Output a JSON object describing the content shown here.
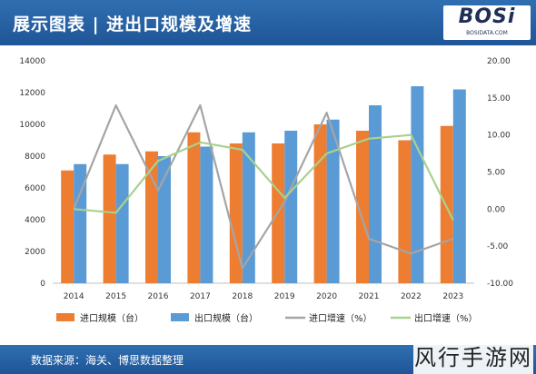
{
  "header": {
    "title": "展示图表 | 进出口规模及增速"
  },
  "logo": {
    "text": "BOSi",
    "sub": "BOSIDATA.COM"
  },
  "footer": {
    "source": "数据来源：海关、博思数据整理"
  },
  "credit": {
    "text": "风行手游网"
  },
  "colors": {
    "import_bar": "#ed7d31",
    "export_bar": "#5b9bd5",
    "import_growth": "#a5a5a5",
    "export_growth": "#a9d18e",
    "header": "#1f5597"
  },
  "chart_data": {
    "type": "bar",
    "categories": [
      "2014",
      "2015",
      "2016",
      "2017",
      "2018",
      "2019",
      "2020",
      "2021",
      "2022",
      "2023"
    ],
    "y_left": {
      "ticks": [
        0,
        2000,
        4000,
        6000,
        8000,
        10000,
        12000,
        14000
      ],
      "ylim": [
        0,
        14000
      ]
    },
    "y_right": {
      "ticks": [
        "-10.00",
        "-5.00",
        "0.00",
        "5.00",
        "10.00",
        "15.00",
        "20.00"
      ],
      "ylim": [
        -10,
        20
      ]
    },
    "series": [
      {
        "name": "进口规模（台）",
        "type": "bar",
        "axis": "left",
        "values": [
          7100,
          8100,
          8300,
          9500,
          8800,
          8800,
          10000,
          9600,
          9000,
          9900
        ]
      },
      {
        "name": "出口规模（台）",
        "type": "bar",
        "axis": "left",
        "values": [
          7500,
          7500,
          8000,
          8600,
          9500,
          9600,
          10300,
          11200,
          12400,
          12200
        ]
      },
      {
        "name": "进口增速（%）",
        "type": "line",
        "axis": "right",
        "values": [
          0,
          14,
          2.5,
          14,
          -8,
          1,
          13,
          -4,
          -6,
          -4
        ]
      },
      {
        "name": "出口增速（%）",
        "type": "line",
        "axis": "right",
        "values": [
          0,
          -0.5,
          6.5,
          9,
          8,
          1.5,
          7.5,
          9.5,
          10,
          -1.5
        ]
      }
    ],
    "legend": {
      "position": "bottom"
    },
    "grid": false
  }
}
